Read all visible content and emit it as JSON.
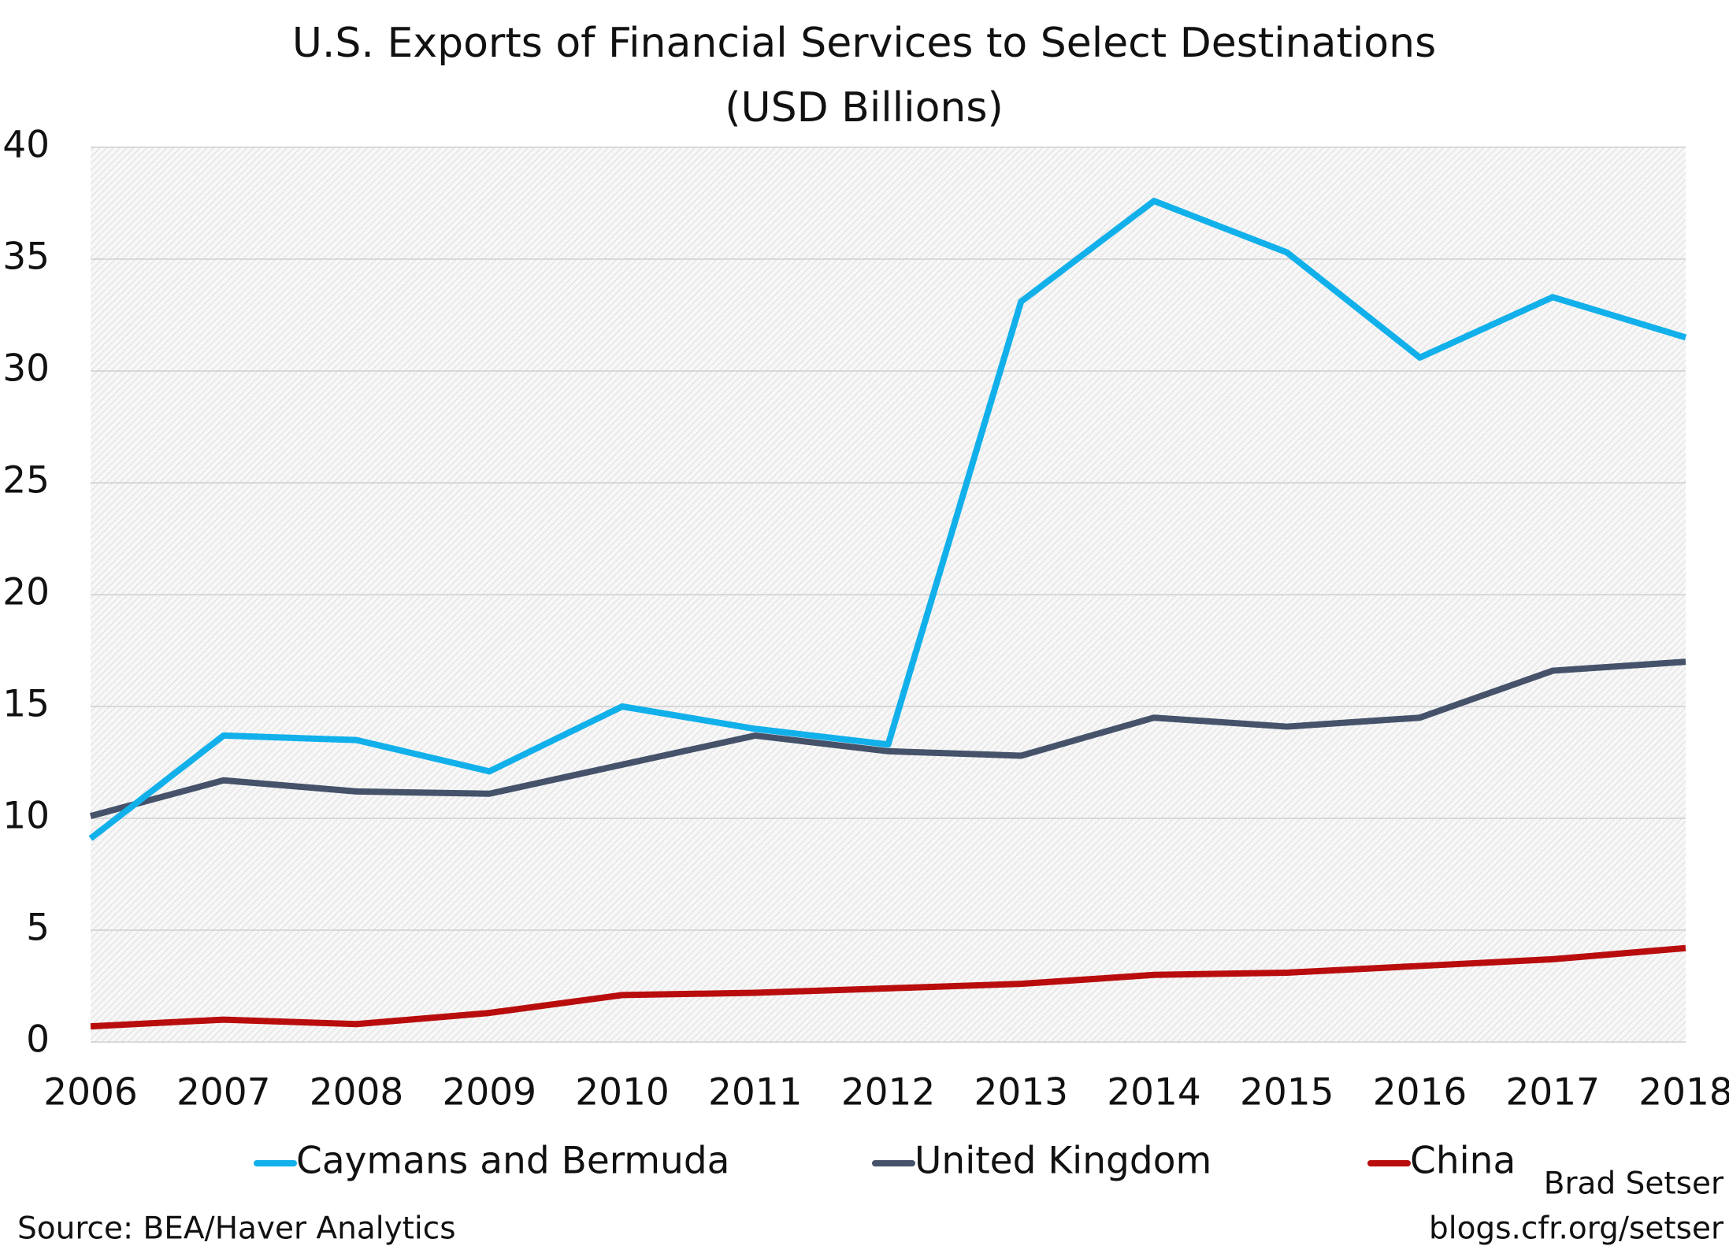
{
  "chart_data": {
    "type": "line",
    "title": "U.S. Exports of Financial Services to Select Destinations",
    "subtitle": "(USD Billions)",
    "x": [
      2006,
      2007,
      2008,
      2009,
      2010,
      2011,
      2012,
      2013,
      2014,
      2015,
      2016,
      2017,
      2018
    ],
    "series": [
      {
        "name": "Caymans and Bermuda",
        "color": "#11b0ea",
        "values": [
          9.1,
          13.7,
          13.5,
          12.1,
          15.0,
          14.0,
          13.3,
          33.1,
          37.6,
          35.3,
          30.6,
          33.3,
          31.5
        ]
      },
      {
        "name": "United Kingdom",
        "color": "#45526a",
        "values": [
          10.1,
          11.7,
          11.2,
          11.1,
          12.4,
          13.7,
          13.0,
          12.8,
          14.5,
          14.1,
          14.5,
          16.6,
          17.0
        ]
      },
      {
        "name": "China",
        "color": "#b90d0d",
        "values": [
          0.7,
          1.0,
          0.8,
          1.3,
          2.1,
          2.2,
          2.4,
          2.6,
          3.0,
          3.1,
          3.4,
          3.7,
          4.2
        ]
      }
    ],
    "xlim": [
      2006,
      2018
    ],
    "xticks": [
      2006,
      2007,
      2008,
      2009,
      2010,
      2011,
      2012,
      2013,
      2014,
      2015,
      2016,
      2017,
      2018
    ],
    "ylim": [
      0,
      40
    ],
    "yticks": [
      0,
      5,
      10,
      15,
      20,
      25,
      30,
      35,
      40
    ],
    "grid": true,
    "legend": "bottom",
    "source": "Source: BEA/Haver Analytics",
    "credit": [
      "Brad Setser",
      "blogs.cfr.org/setser"
    ]
  }
}
